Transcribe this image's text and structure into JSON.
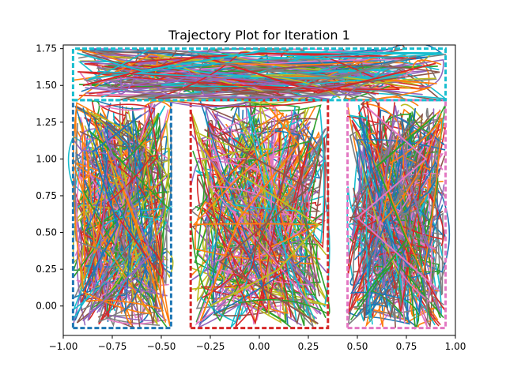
{
  "chart_data": {
    "type": "line",
    "title": "Trajectory Plot for Iteration 1",
    "xlabel": "",
    "ylabel": "",
    "xlim": [
      -1.0,
      1.0
    ],
    "ylim": [
      -0.2,
      1.775
    ],
    "xticks": [
      -1.0,
      -0.75,
      -0.5,
      -0.25,
      0.0,
      0.25,
      0.5,
      0.75,
      1.0
    ],
    "xtick_labels": [
      "−1.00",
      "−0.75",
      "−0.50",
      "−0.25",
      "0.00",
      "0.25",
      "0.50",
      "0.75",
      "1.00"
    ],
    "yticks": [
      0.0,
      0.25,
      0.5,
      0.75,
      1.0,
      1.25,
      1.5,
      1.75
    ],
    "ytick_labels": [
      "0.00",
      "0.25",
      "0.50",
      "0.75",
      "1.00",
      "1.25",
      "1.50",
      "1.75"
    ],
    "grid": false,
    "legend": "none",
    "regions": [
      {
        "name": "left-column",
        "x": [
          -0.95,
          -0.45
        ],
        "y": [
          -0.15,
          1.4
        ]
      },
      {
        "name": "middle-column",
        "x": [
          -0.35,
          0.35
        ],
        "y": [
          -0.15,
          1.4
        ]
      },
      {
        "name": "right-column",
        "x": [
          0.45,
          0.95
        ],
        "y": [
          -0.15,
          1.4
        ]
      },
      {
        "name": "top-corridor",
        "x": [
          -0.95,
          0.95
        ],
        "y": [
          1.4,
          1.75
        ]
      }
    ],
    "colors": [
      "#1f77b4",
      "#ff7f0e",
      "#2ca02c",
      "#d62728",
      "#9467bd",
      "#8c564b",
      "#e377c2",
      "#7f7f7f",
      "#bcbd22",
      "#17becf"
    ],
    "series": [
      {
        "values": [
          [
            -0.9,
            0.1
          ],
          [
            -0.72,
            0.55
          ],
          [
            -0.85,
            1.05
          ],
          [
            -0.6,
            1.3
          ]
        ]
      },
      {
        "values": [
          [
            -0.3,
            -0.1
          ],
          [
            -0.1,
            0.6
          ],
          [
            0.2,
            1.1
          ],
          [
            0.05,
            1.35
          ]
        ]
      },
      {
        "values": [
          [
            0.5,
            0.0
          ],
          [
            0.75,
            0.45
          ],
          [
            0.6,
            0.95
          ],
          [
            0.9,
            1.3
          ]
        ]
      },
      {
        "values": [
          [
            -0.9,
            1.5
          ],
          [
            -0.3,
            1.7
          ],
          [
            0.3,
            1.45
          ],
          [
            0.9,
            1.65
          ]
        ]
      },
      {
        "values": [
          [
            -0.8,
            1.2
          ],
          [
            -0.55,
            0.35
          ],
          [
            -0.9,
            -0.1
          ]
        ]
      },
      {
        "values": [
          [
            0.3,
            -0.12
          ],
          [
            -0.2,
            0.3
          ],
          [
            0.25,
            0.8
          ],
          [
            -0.28,
            1.2
          ]
        ]
      },
      {
        "values": [
          [
            0.92,
            0.1
          ],
          [
            0.5,
            0.6
          ],
          [
            0.85,
            1.0
          ],
          [
            0.55,
            1.35
          ]
        ]
      },
      {
        "values": [
          [
            -0.2,
            1.65
          ],
          [
            0.4,
            1.55
          ],
          [
            0.8,
            1.7
          ],
          [
            0.1,
            1.45
          ]
        ]
      },
      {
        "values": [
          [
            -0.25,
            0.0
          ],
          [
            0.1,
            0.25
          ],
          [
            0.3,
            0.55
          ],
          [
            -0.1,
            0.9
          ]
        ]
      },
      {
        "values": [
          [
            -0.93,
            1.72
          ],
          [
            -0.6,
            1.6
          ],
          [
            0.0,
            1.73
          ],
          [
            0.93,
            1.72
          ]
        ]
      }
    ]
  }
}
